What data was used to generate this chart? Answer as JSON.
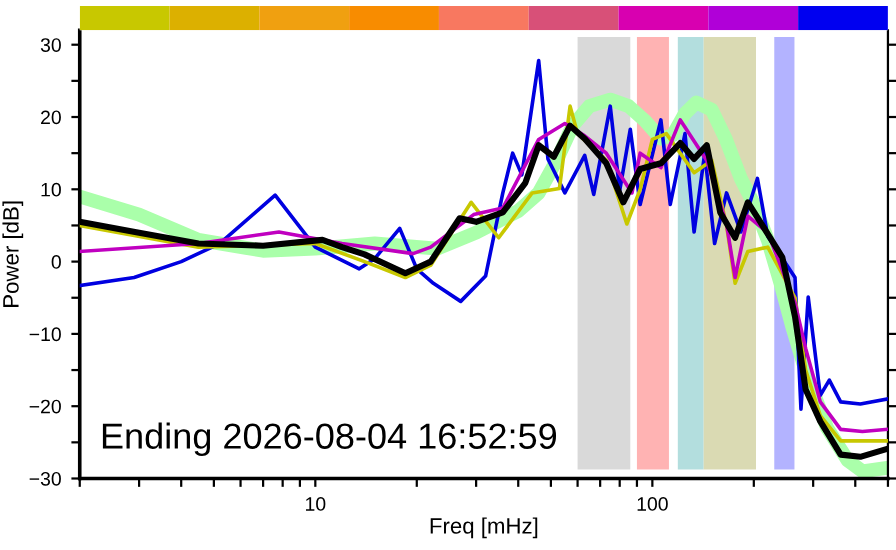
{
  "chart_data": {
    "type": "line",
    "xlabel": "Freq [mHz]",
    "ylabel": "Power [dB]",
    "log": "x",
    "xlim": [
      2,
      500
    ],
    "ylim": [
      -30,
      32
    ],
    "xticks": [
      {
        "value": 2,
        "label": null
      },
      {
        "value": 3,
        "label": null
      },
      {
        "value": 4,
        "label": null
      },
      {
        "value": 5,
        "label": null
      },
      {
        "value": 6,
        "label": null
      },
      {
        "value": 7,
        "label": null
      },
      {
        "value": 8,
        "label": null
      },
      {
        "value": 9,
        "label": null
      },
      10,
      {
        "value": 20,
        "label": null
      },
      {
        "value": 30,
        "label": null
      },
      {
        "value": 40,
        "label": null
      },
      {
        "value": 50,
        "label": null
      },
      {
        "value": 60,
        "label": null
      },
      {
        "value": 70,
        "label": null
      },
      {
        "value": 80,
        "label": null
      },
      {
        "value": 90,
        "label": null
      },
      100,
      {
        "value": 200,
        "label": null
      },
      {
        "value": 300,
        "label": null
      },
      {
        "value": 400,
        "label": null
      },
      {
        "value": 500,
        "label": null
      }
    ],
    "yticks": [
      {
        "value": -30,
        "label": "−30"
      },
      {
        "value": -25,
        "label": null
      },
      {
        "value": -20,
        "label": "−20"
      },
      {
        "value": -15,
        "label": null
      },
      {
        "value": -10,
        "label": "−10"
      },
      {
        "value": -5,
        "label": null
      },
      0,
      {
        "value": 5,
        "label": null
      },
      10,
      {
        "value": 15,
        "label": null
      },
      20,
      {
        "value": 25,
        "label": null
      },
      30
    ],
    "grid": false,
    "legend": false,
    "series": [
      {
        "color": "#aaffaa",
        "x": [
          2,
          3,
          4.5,
          7,
          10,
          15,
          23,
          30,
          40,
          46,
          52,
          58,
          65,
          75,
          85,
          95,
          106,
          115,
          125,
          135,
          150,
          165,
          183,
          200,
          220,
          240,
          260,
          280,
          300,
          330,
          380,
          420,
          500
        ],
        "values": [
          9,
          6.5,
          3,
          1.5,
          1.8,
          2.5,
          1.8,
          4,
          7,
          9.5,
          14,
          18.8,
          21.5,
          22.4,
          21.5,
          19.5,
          17,
          17.5,
          20.5,
          22,
          21,
          17,
          11.5,
          8,
          3,
          -3,
          -9,
          -14,
          -18,
          -23,
          -27.5,
          -29,
          -28.5
        ]
      },
      {
        "color": "#0000e0",
        "x": [
          2,
          2.9,
          4,
          5.2,
          7.6,
          10,
          13.5,
          15,
          17.8,
          20,
          22.4,
          27,
          32,
          36,
          38.5,
          41,
          46,
          49,
          55,
          63,
          67,
          75,
          80,
          86,
          92,
          106,
          113,
          125,
          133,
          143,
          153,
          166,
          183,
          205,
          220,
          265,
          276,
          290,
          315,
          335,
          362,
          414,
          497
        ],
        "values": [
          -3.3,
          -2.2,
          0,
          2.5,
          9.2,
          2,
          -1,
          0.4,
          4.6,
          -1,
          -3,
          -5.5,
          -2,
          9.5,
          15,
          12,
          27.8,
          14.2,
          9.5,
          14.7,
          9.3,
          21.5,
          9.8,
          18.3,
          7.9,
          19.6,
          7.9,
          17.7,
          4.1,
          15,
          2.5,
          9.5,
          4.1,
          11.5,
          3.5,
          -2.2,
          -20.4,
          -4.9,
          -18.5,
          -16.4,
          -19.4,
          -19.7,
          -19
        ]
      },
      {
        "color": "#c8c800",
        "x": [
          2,
          4.5,
          10,
          14,
          18.5,
          22,
          29,
          35,
          44,
          53,
          57,
          60,
          73,
          84,
          92,
          100,
          110,
          133,
          150,
          166,
          176,
          192,
          220,
          265,
          285,
          315,
          362,
          497
        ],
        "values": [
          5,
          2,
          2.5,
          0,
          -2.2,
          -0.5,
          8.2,
          3.3,
          9.5,
          10.1,
          21.5,
          17.7,
          14,
          5.2,
          10,
          16.9,
          17.7,
          12.3,
          14,
          5,
          -3,
          1.4,
          2,
          -5,
          -15,
          -21.3,
          -24.8,
          -24.8
        ]
      },
      {
        "color": "#c000c0",
        "x": [
          2,
          4.5,
          7.8,
          12,
          19.5,
          22,
          29.5,
          36,
          40,
          46,
          55,
          63,
          73,
          87,
          92,
          106,
          121,
          145,
          166,
          176,
          192,
          220,
          265,
          285,
          315,
          362,
          420,
          497
        ],
        "values": [
          1.4,
          2.5,
          4.1,
          2.5,
          1.1,
          2,
          6.5,
          7.4,
          11.5,
          16.9,
          19.1,
          17.4,
          15,
          9.5,
          15,
          13,
          19.6,
          14,
          5.2,
          -2.2,
          6.3,
          4,
          -5.7,
          -12,
          -19.4,
          -23.2,
          -23.5,
          -23.2
        ]
      },
      {
        "color": "#000000",
        "x": [
          2,
          3,
          4.5,
          7,
          10.5,
          12,
          14,
          18.5,
          22,
          26.8,
          30,
          36,
          42,
          46,
          51,
          57,
          63,
          73,
          82,
          92,
          106,
          121,
          133,
          145,
          159,
          176,
          192,
          209,
          243,
          265,
          285,
          315,
          362,
          414,
          497
        ],
        "values": [
          5.5,
          4,
          2.5,
          2.2,
          3,
          2,
          1,
          -1.6,
          0,
          6,
          5.5,
          6.8,
          10.9,
          16.1,
          14.5,
          18.8,
          17,
          13.6,
          8.2,
          12.8,
          13.6,
          16.4,
          14.2,
          16.1,
          6.8,
          3.3,
          8.2,
          5.5,
          0.6,
          -7.6,
          -17.7,
          -22.1,
          -26.7,
          -27,
          -25.9
        ]
      }
    ],
    "bands": [
      {
        "axis": "x",
        "from": 60,
        "to": 86,
        "color": "#d9d9d9"
      },
      {
        "axis": "x",
        "from": 90,
        "to": 112,
        "color": "#ffb3b3"
      },
      {
        "axis": "x",
        "from": 119,
        "to": 142,
        "color": "#b3dede"
      },
      {
        "axis": "x",
        "from": 142,
        "to": 203,
        "color": "#dadab3"
      },
      {
        "axis": "x",
        "from": 230,
        "to": 264,
        "color": "#b3b3ff"
      }
    ],
    "annotations": [
      "Ending 2026-08-04 16:52:59"
    ]
  }
}
